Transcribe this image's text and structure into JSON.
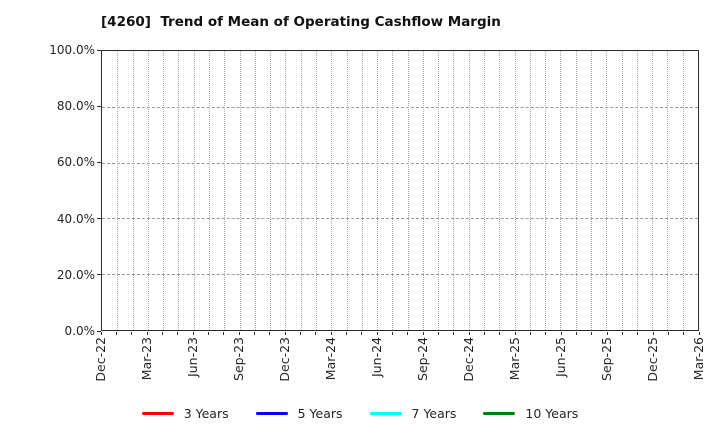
{
  "chart_data": {
    "type": "line",
    "title": "[4260]  Trend of Mean of Operating Cashflow Margin",
    "x_axis": {
      "tick_labels": [
        "Dec-22",
        "Mar-23",
        "Jun-23",
        "Sep-23",
        "Dec-23",
        "Mar-24",
        "Jun-24",
        "Sep-24",
        "Dec-24",
        "Mar-25",
        "Jun-25",
        "Sep-25",
        "Dec-25",
        "Mar-26"
      ],
      "minor_gridlines_per_interval": 3
    },
    "y_axis": {
      "tick_labels": [
        "0.0%",
        "20.0%",
        "40.0%",
        "60.0%",
        "80.0%",
        "100.0%"
      ],
      "range": [
        0,
        100
      ],
      "unit": "%"
    },
    "grid": true,
    "legend_position": "bottom-center",
    "series": [
      {
        "name": "3 Years",
        "color": "#ff0000",
        "values": []
      },
      {
        "name": "5 Years",
        "color": "#0000ff",
        "values": []
      },
      {
        "name": "7 Years",
        "color": "#00ffff",
        "values": []
      },
      {
        "name": "10 Years",
        "color": "#008000",
        "values": []
      }
    ]
  }
}
